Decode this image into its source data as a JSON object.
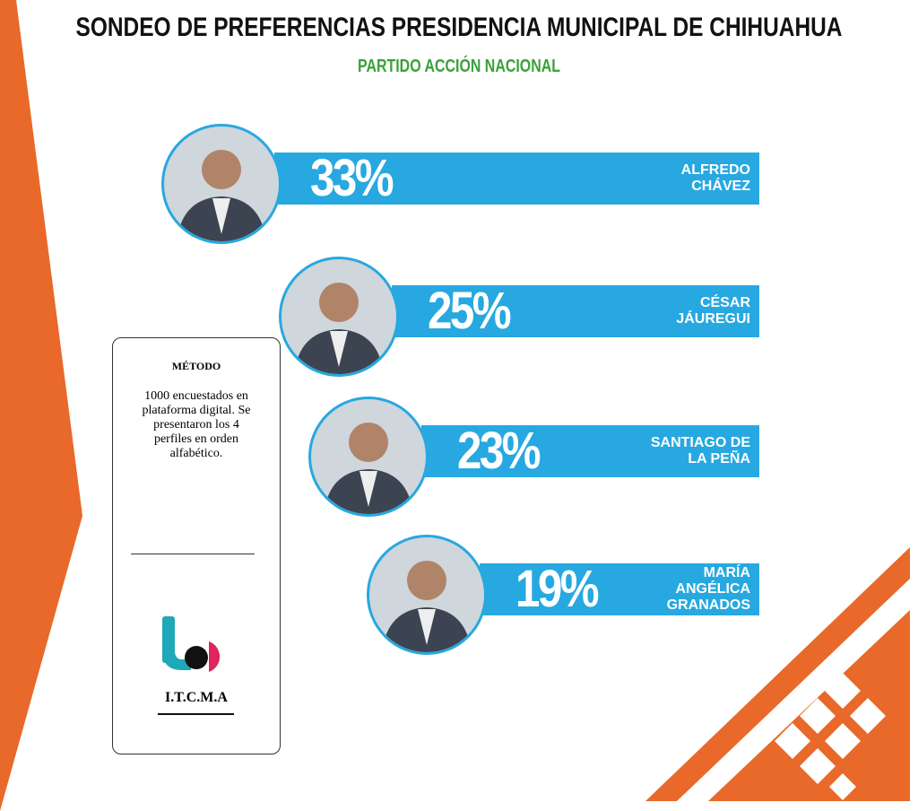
{
  "chart_data": {
    "type": "bar",
    "title": "SONDEO DE PREFERENCIAS PRESIDENCIA MUNICIPAL DE CHIHUAHUA",
    "subtitle": "PARTIDO ACCIÓN NACIONAL",
    "categories": [
      "ALFREDO CHÁVEZ",
      "CÉSAR JÁUREGUI",
      "SANTIAGO DE LA PEÑA",
      "MARÍA ANGÉLICA GRANADOS"
    ],
    "values": [
      33,
      25,
      23,
      19
    ],
    "value_labels": [
      "33%",
      "25%",
      "23%",
      "19%"
    ],
    "color": "#27a8e0"
  },
  "method": {
    "title": "MÉTODO",
    "text": "1000 encuestados en plataforma digital. Se presentaron los 4 perfiles en orden alfabético."
  },
  "logo": {
    "name": "I.T.C.M.A"
  }
}
